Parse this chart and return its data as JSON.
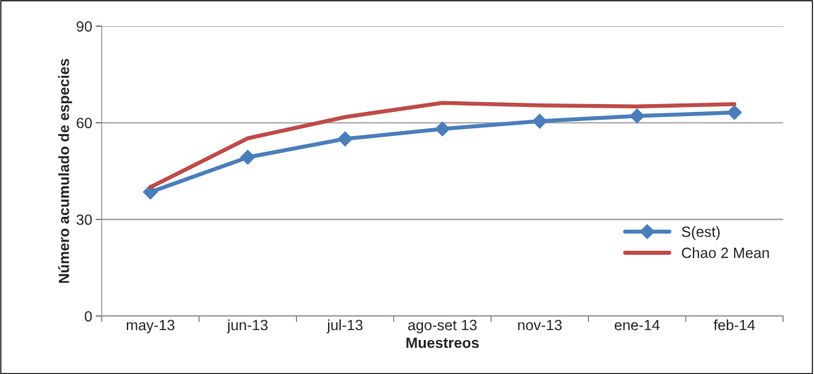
{
  "chart_data": {
    "type": "line",
    "xlabel": "Muestreos",
    "ylabel": "Número acumulado de especies",
    "categories": [
      "may-13",
      "jun-13",
      "jul-13",
      "ago-set 13",
      "nov-13",
      "ene-14",
      "feb-14"
    ],
    "series": [
      {
        "name": "S(est)",
        "color": "#4a7ebb",
        "marker": "diamond",
        "values": [
          38.5,
          49.3,
          55.0,
          58.1,
          60.5,
          62.1,
          63.2
        ]
      },
      {
        "name": "Chao 2 Mean",
        "color": "#be4b48",
        "marker": "none",
        "values": [
          40.0,
          55.2,
          61.8,
          66.2,
          65.4,
          65.1,
          65.8
        ]
      }
    ],
    "ylim": [
      0,
      90
    ],
    "yticks": [
      0,
      30,
      60,
      90
    ],
    "grid": "y",
    "legend": "right"
  }
}
